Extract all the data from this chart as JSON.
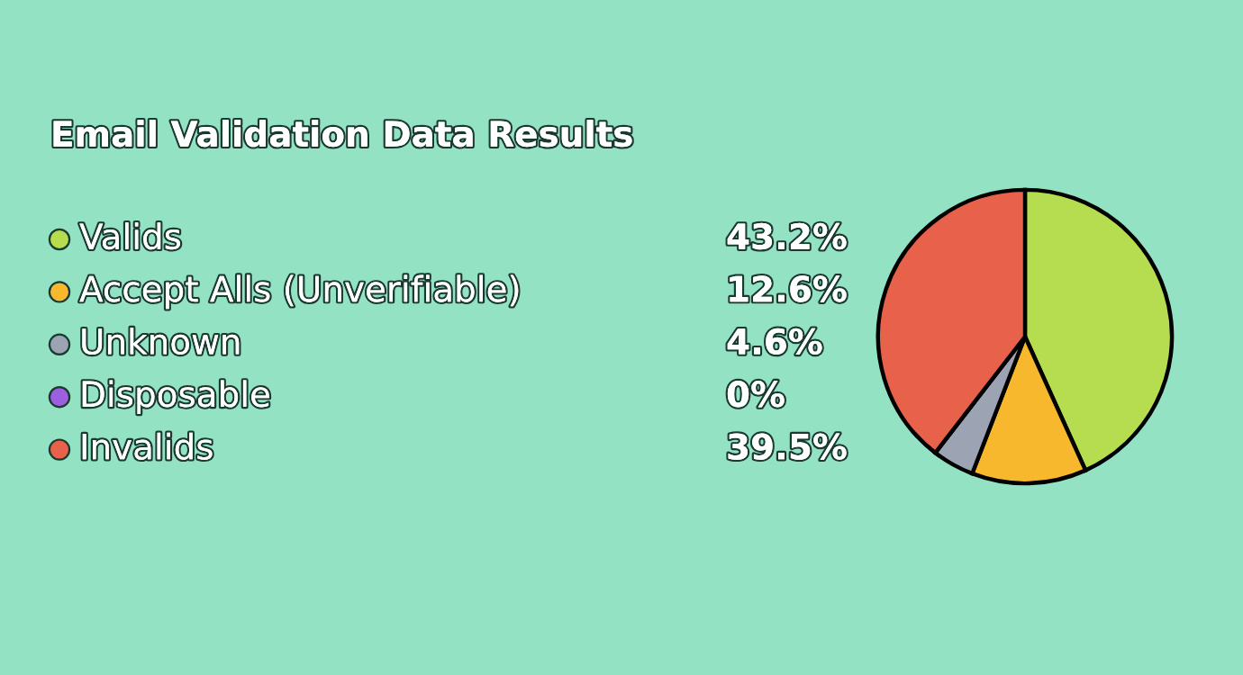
{
  "chart_data": {
    "type": "pie",
    "title": "Email Validation Data Results",
    "categories": [
      "Valids",
      "Accept Alls (Unverifiable)",
      "Unknown",
      "Disposable",
      "Invalids"
    ],
    "values": [
      43.2,
      12.6,
      4.6,
      0,
      39.5
    ],
    "value_labels": [
      "43.2%",
      "12.6%",
      "4.6%",
      "0%",
      "39.5%"
    ],
    "colors": [
      "#b6dc4f",
      "#f8b82e",
      "#9ca4b4",
      "#9b5fe0",
      "#e8614a"
    ],
    "legend": "left"
  }
}
